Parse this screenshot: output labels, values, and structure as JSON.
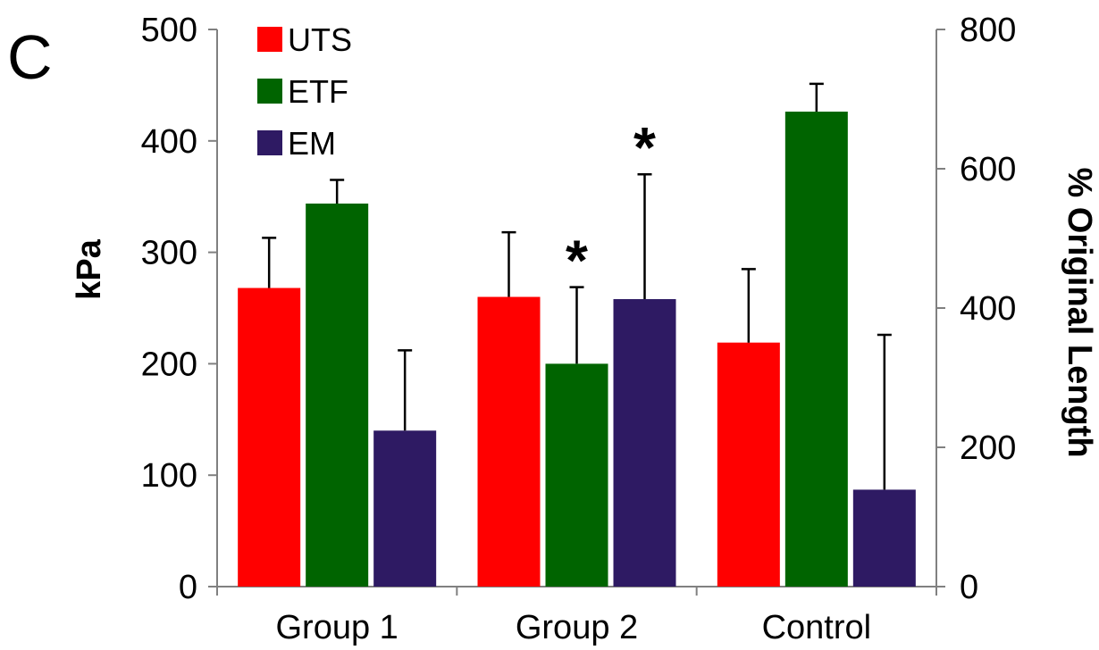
{
  "panel_label": "C",
  "colors": {
    "UTS": "#ff0000",
    "ETF": "#006400",
    "EM": "#2e1a63",
    "axis": "#808080"
  },
  "chart_data": {
    "type": "bar",
    "categories": [
      "Group 1",
      "Group 2",
      "Control"
    ],
    "ylabel": "kPa",
    "y2label": "% Original Length",
    "ylim": [
      0,
      500
    ],
    "y2lim": [
      0,
      800
    ],
    "yticks": [
      "0",
      "100",
      "200",
      "300",
      "400",
      "500"
    ],
    "y2ticks": [
      "0",
      "200",
      "400",
      "600",
      "800"
    ],
    "legend_position": "top-left",
    "grid": false,
    "series": [
      {
        "name": "UTS",
        "axis": "left",
        "values": [
          268,
          260,
          219
        ],
        "errors": [
          45,
          58,
          66
        ],
        "significant": [
          false,
          false,
          false
        ]
      },
      {
        "name": "ETF",
        "axis": "right",
        "values": [
          550,
          320,
          682
        ],
        "errors": [
          34,
          110,
          40
        ],
        "significant": [
          false,
          true,
          false
        ]
      },
      {
        "name": "EM",
        "axis": "left",
        "values": [
          140,
          258,
          87
        ],
        "errors": [
          72,
          112,
          139
        ],
        "significant": [
          false,
          true,
          false
        ]
      }
    ],
    "significance_marker": "*"
  }
}
